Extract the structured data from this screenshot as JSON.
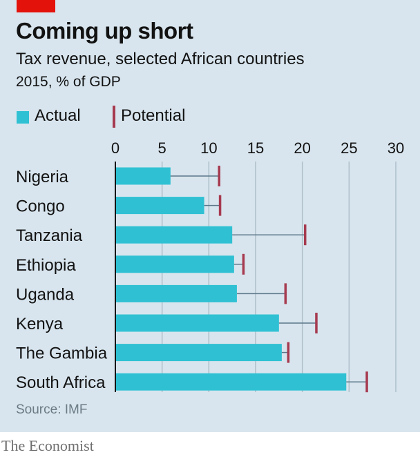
{
  "header": {
    "title": "Coming up short",
    "subtitle": "Tax revenue, selected African countries",
    "units": "2015, % of GDP"
  },
  "footer": {
    "source": "Source: IMF",
    "brand": "The Economist"
  },
  "colors": {
    "actual": "#2fc1d3",
    "potential": "#a63a4f",
    "whisker": "#5b7688",
    "grid": "#aebfca",
    "axis": "#121212",
    "brand_red": "#e3120b"
  },
  "chart_data": {
    "type": "bar",
    "orientation": "horizontal",
    "categories": [
      "Nigeria",
      "Congo",
      "Tanzania",
      "Ethiopia",
      "Uganda",
      "Kenya",
      "The Gambia",
      "South Africa"
    ],
    "series": [
      {
        "name": "Actual",
        "values": [
          5.9,
          9.5,
          12.5,
          12.7,
          13.0,
          17.5,
          17.8,
          24.7
        ]
      },
      {
        "name": "Potential",
        "values": [
          11.1,
          11.2,
          20.3,
          13.7,
          18.2,
          21.5,
          18.5,
          26.9
        ]
      }
    ],
    "xlim": [
      0,
      30
    ],
    "xticks": [
      "0",
      "5",
      "10",
      "15",
      "20",
      "25",
      "30"
    ],
    "grid": true,
    "legend_position": "top-left"
  }
}
